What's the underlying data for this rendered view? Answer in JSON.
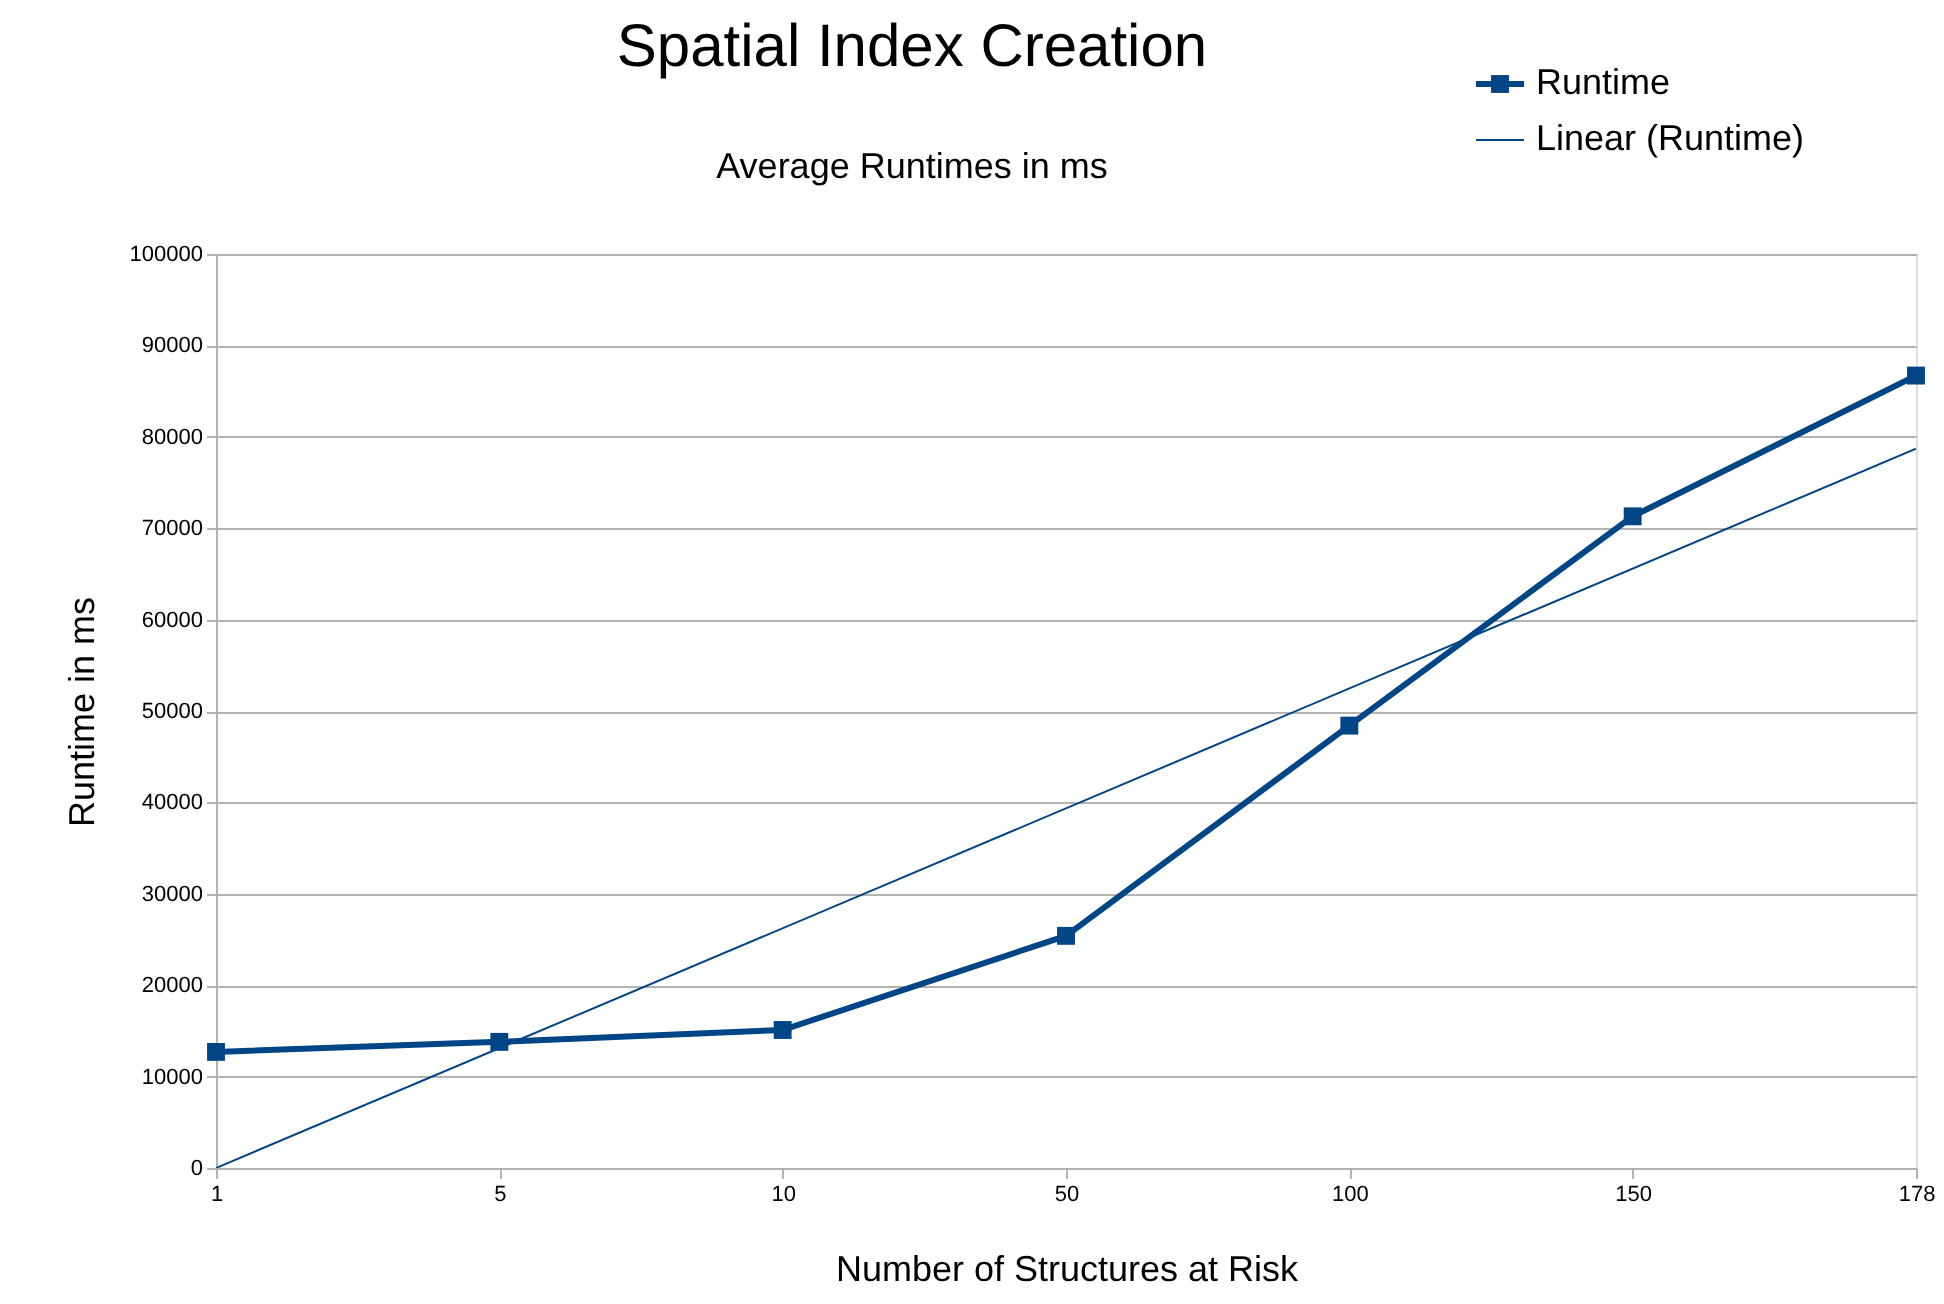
{
  "chart_data": {
    "type": "line",
    "title": "Spatial Index Creation",
    "subtitle": "Average Runtimes in ms",
    "xlabel": "Number of Structures at Risk",
    "ylabel": "Runtime in ms",
    "categories": [
      "1",
      "5",
      "10",
      "50",
      "100",
      "150",
      "178"
    ],
    "series": [
      {
        "name": "Runtime",
        "color": "#004586",
        "values": [
          12700,
          13800,
          15100,
          25400,
          48400,
          71300,
          86700
        ],
        "marker": "square"
      },
      {
        "name": "Linear (Runtime)",
        "color": "#004586",
        "type": "line",
        "x": [
          "1",
          "178"
        ],
        "values": [
          0,
          78700
        ],
        "marker": "none"
      }
    ],
    "ylim": [
      0,
      100000
    ],
    "yticks": [
      0,
      10000,
      20000,
      30000,
      40000,
      50000,
      60000,
      70000,
      80000,
      90000,
      100000
    ],
    "grid": "y",
    "legend": "top right"
  }
}
